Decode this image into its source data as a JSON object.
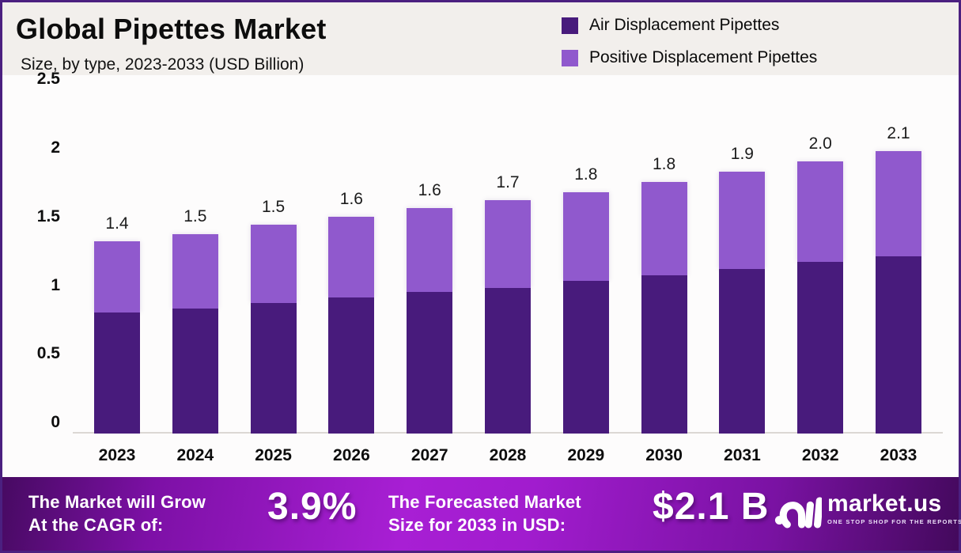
{
  "header": {
    "title": "Global Pipettes Market",
    "subtitle": "Size, by type, 2023-2033 (USD Billion)"
  },
  "legend": {
    "items": [
      {
        "label": "Air Displacement Pipettes",
        "color": "#481b7c"
      },
      {
        "label": "Positive Displacement Pipettes",
        "color": "#9059cd"
      }
    ]
  },
  "chart_data": {
    "type": "bar",
    "stacked": true,
    "title": "Global Pipettes Market Size, by type, 2023-2033 (USD Billion)",
    "xlabel": "",
    "ylabel": "USD Billion",
    "ylim": [
      0,
      2.5
    ],
    "grid": false,
    "legend_position": "top-right",
    "categories": [
      "2023",
      "2024",
      "2025",
      "2026",
      "2027",
      "2028",
      "2029",
      "2030",
      "2031",
      "2032",
      "2033"
    ],
    "series": [
      {
        "name": "Air Displacement Pipettes",
        "color": "#481b7c",
        "values": [
          0.88,
          0.91,
          0.95,
          0.99,
          1.03,
          1.06,
          1.11,
          1.15,
          1.2,
          1.25,
          1.29
        ]
      },
      {
        "name": "Positive Displacement Pipettes",
        "color": "#9059cd",
        "values": [
          0.52,
          0.54,
          0.57,
          0.59,
          0.61,
          0.64,
          0.65,
          0.68,
          0.71,
          0.73,
          0.77
        ]
      }
    ],
    "totals": [
      1.4,
      1.5,
      1.5,
      1.6,
      1.6,
      1.7,
      1.8,
      1.8,
      1.9,
      2.0,
      2.1
    ],
    "total_labels": [
      "1.4",
      "1.5",
      "1.5",
      "1.6",
      "1.6",
      "1.7",
      "1.8",
      "1.8",
      "1.9",
      "2.0",
      "2.1"
    ],
    "yticks": [
      0,
      0.5,
      1,
      1.5,
      2,
      2.5
    ],
    "ytick_labels": [
      "0",
      "0.5",
      "1",
      "1.5",
      "2",
      "2.5"
    ]
  },
  "footer": {
    "cagr_label_line1": "The Market will Grow",
    "cagr_label_line2": "At the CAGR of:",
    "cagr_value": "3.9%",
    "forecast_label_line1": "The Forecasted Market",
    "forecast_label_line2": "Size for 2033 in USD:",
    "forecast_value": "$2.1 B",
    "brand": {
      "name": "market.us",
      "tagline": "ONE STOP SHOP FOR THE REPORTS"
    }
  }
}
